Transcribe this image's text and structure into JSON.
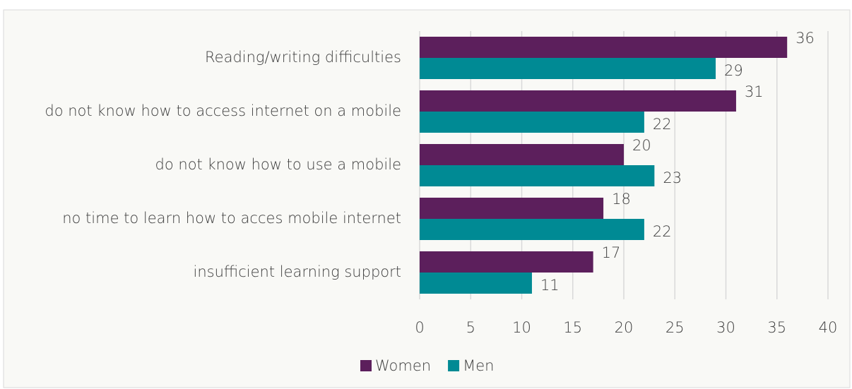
{
  "chart_data": {
    "type": "hbar",
    "categories": [
      "Reading/writing difficulties",
      "do not know how to access internet on a mobile",
      "do not know how to use a mobile",
      "no time to learn how to acces mobile internet",
      "insufficient learning support"
    ],
    "series": [
      {
        "name": "Women",
        "color": "#5c1f5c",
        "values": [
          36,
          31,
          20,
          18,
          17
        ]
      },
      {
        "name": "Men",
        "color": "#008a94",
        "values": [
          29,
          22,
          23,
          22,
          11
        ]
      }
    ],
    "xlim": [
      0,
      40
    ],
    "xticks": [
      0,
      5,
      10,
      15,
      20,
      25,
      30,
      35,
      40
    ],
    "grid": true,
    "legend": "bottom"
  }
}
